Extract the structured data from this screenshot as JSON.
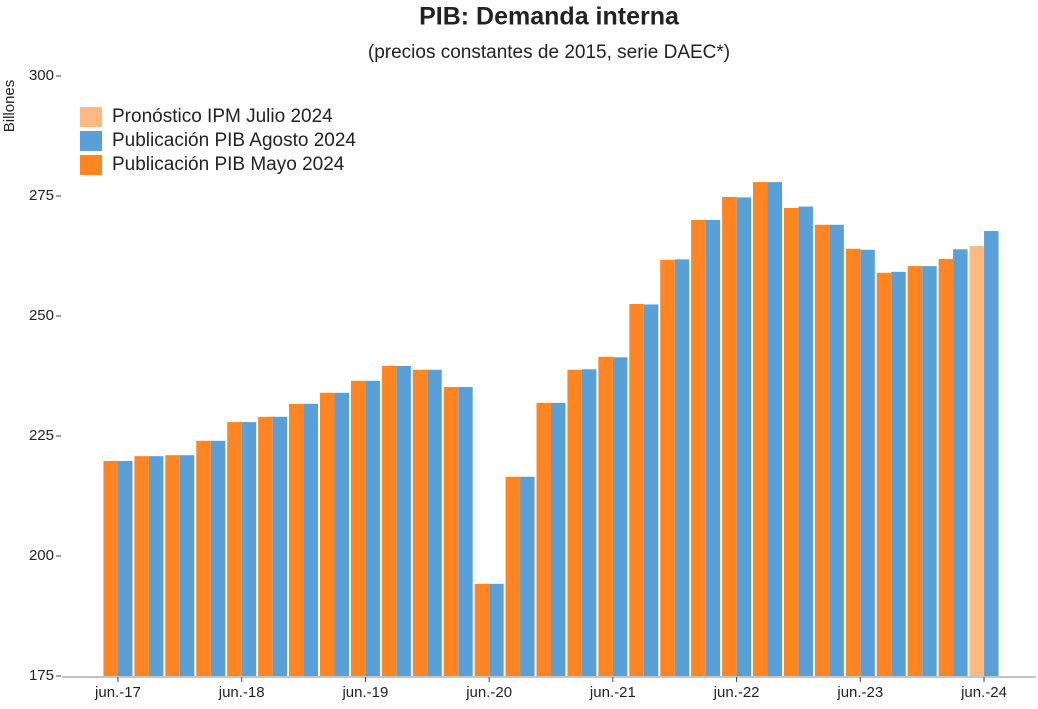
{
  "chart_data": {
    "type": "bar",
    "title": "PIB: Demanda interna",
    "subtitle": "(precios constantes de 2015, serie DAEC*)",
    "y_label": "Billones",
    "categories": [
      "jun.-17",
      null,
      null,
      null,
      "jun.-18",
      null,
      null,
      null,
      "jun.-19",
      null,
      null,
      null,
      "jun.-20",
      null,
      null,
      null,
      "jun.-21",
      null,
      null,
      null,
      "jun.-22",
      null,
      null,
      null,
      "jun.-23",
      null,
      null,
      null,
      "jun.-24"
    ],
    "series": [
      {
        "name": "Pronóstico IPM Julio 2024",
        "color": "#fdb97f",
        "values": [
          null,
          null,
          null,
          null,
          null,
          null,
          null,
          null,
          null,
          null,
          null,
          null,
          null,
          null,
          null,
          null,
          null,
          null,
          null,
          null,
          null,
          null,
          null,
          null,
          null,
          null,
          null,
          null,
          264.6
        ]
      },
      {
        "name": "Publicación PIB Agosto 2024",
        "color": "#5aa0d8",
        "values": [
          219.8,
          220.8,
          221,
          224,
          227.9,
          229,
          231.7,
          234,
          236.5,
          239.6,
          238.8,
          235.2,
          194.2,
          216.5,
          231.9,
          238.9,
          241.4,
          252.4,
          261.8,
          270,
          274.7,
          277.9,
          272.8,
          269,
          263.8,
          259.2,
          260.4,
          263.9,
          267.7
        ]
      },
      {
        "name": "Publicación PIB Mayo 2024",
        "color": "#ff8422",
        "values": [
          219.8,
          220.8,
          221,
          224,
          227.9,
          229,
          231.7,
          234,
          236.5,
          239.6,
          238.8,
          235.2,
          194.2,
          216.5,
          231.9,
          238.8,
          241.5,
          252.5,
          261.7,
          270,
          274.8,
          277.9,
          272.5,
          269,
          264,
          259,
          260.4,
          261.9,
          null
        ]
      }
    ],
    "ylim": [
      175,
      300
    ],
    "yticks": [
      175,
      200,
      225,
      250,
      275,
      300
    ],
    "legend": "upper-left",
    "grid": false
  }
}
